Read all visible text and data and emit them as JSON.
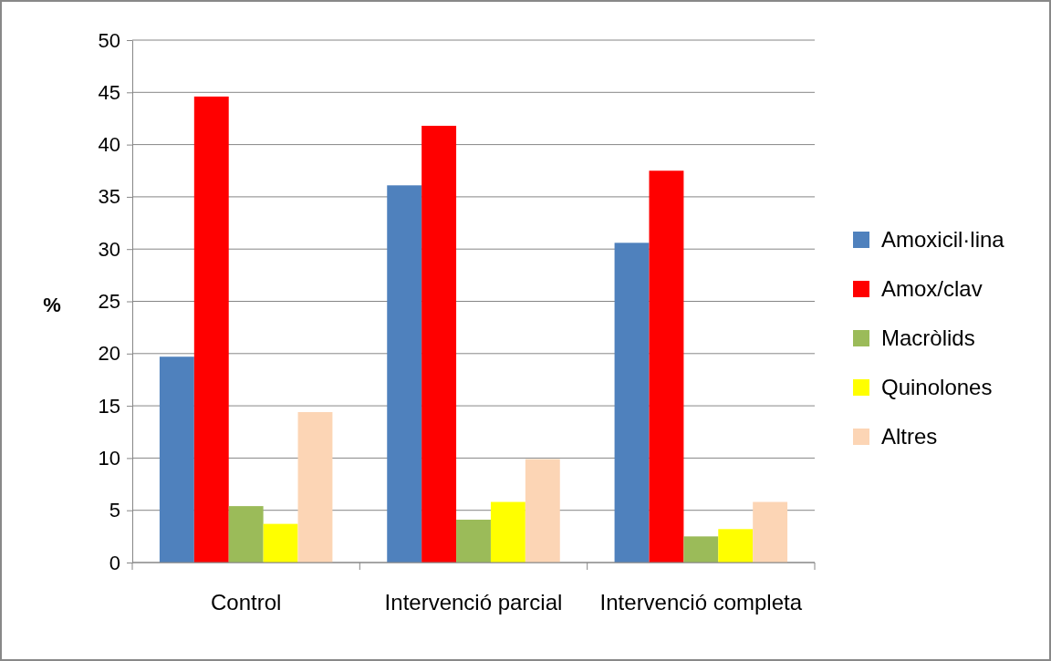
{
  "chart_data": {
    "type": "bar",
    "ylabel": "%",
    "categories": [
      "Control",
      "Intervenció parcial",
      "Intervenció completa"
    ],
    "series": [
      {
        "name": "Amoxicil·lina",
        "color": "#4f81bd",
        "values": [
          19.7,
          36.1,
          30.6
        ]
      },
      {
        "name": "Amox/clav",
        "color": "#ff0000",
        "values": [
          44.6,
          41.8,
          37.5
        ]
      },
      {
        "name": "Macròlids",
        "color": "#9bbb59",
        "values": [
          5.4,
          4.1,
          2.5
        ]
      },
      {
        "name": "Quinolones",
        "color": "#ffff00",
        "values": [
          3.7,
          5.8,
          3.2
        ]
      },
      {
        "name": "Altres",
        "color": "#fcd5b5",
        "values": [
          14.4,
          9.9,
          5.8
        ]
      }
    ],
    "ylim": [
      0,
      50
    ],
    "yticks": [
      0,
      5,
      10,
      15,
      20,
      25,
      30,
      35,
      40,
      45,
      50
    ],
    "grid": "y",
    "legend": "right"
  }
}
